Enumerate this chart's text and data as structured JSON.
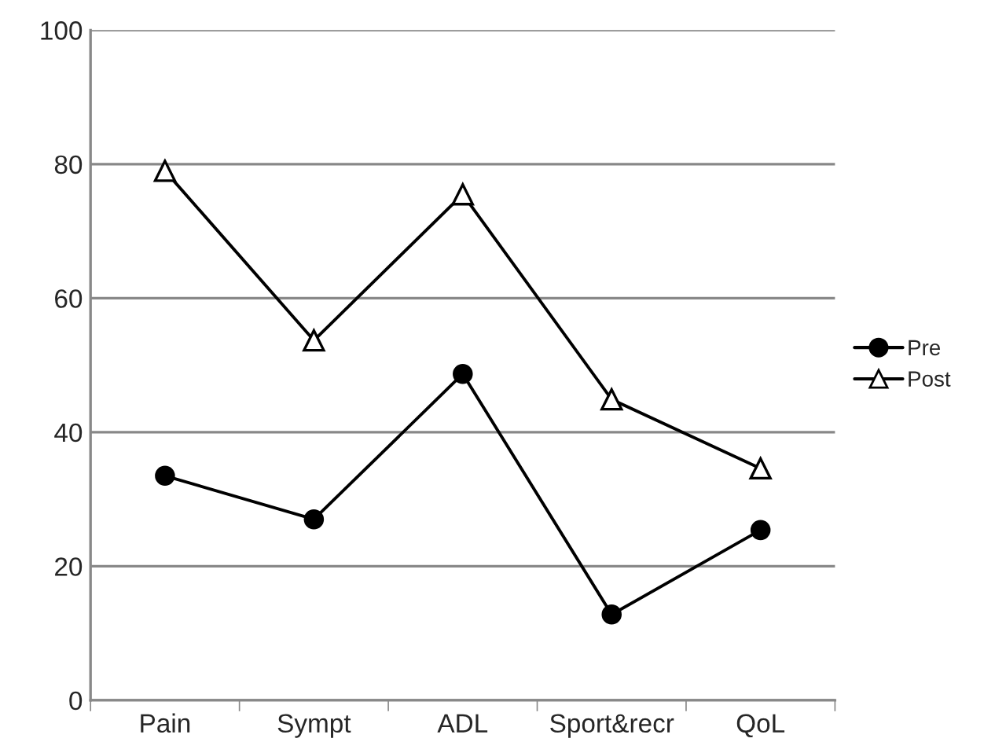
{
  "chart_data": {
    "type": "line",
    "categories": [
      "Pain",
      "Sympt",
      "ADL",
      "Sport&recr",
      "QoL"
    ],
    "series": [
      {
        "name": "Pre",
        "color": "#000000",
        "marker": "circle",
        "values": [
          33.5,
          27,
          48.7,
          12.8,
          25.4
        ]
      },
      {
        "name": "Post",
        "color": "#000000",
        "marker": "triangle",
        "values": [
          79,
          53.7,
          75.5,
          44.9,
          34.6
        ]
      }
    ],
    "ylim": [
      0,
      100
    ],
    "yticks": [
      0,
      20,
      40,
      60,
      80,
      100
    ],
    "grid": "y",
    "legend": "right",
    "line_style": "solid"
  }
}
